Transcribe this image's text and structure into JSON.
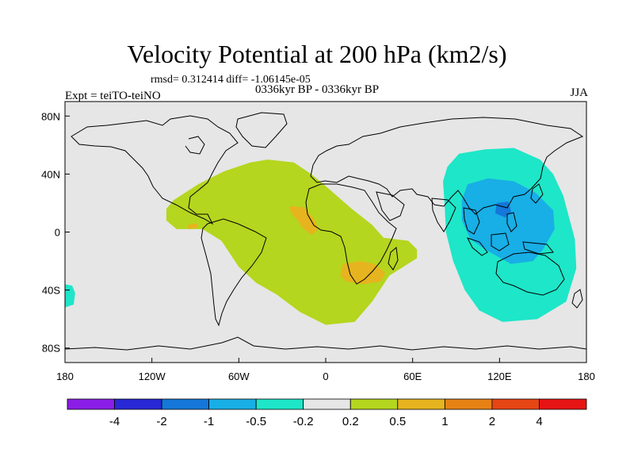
{
  "header": {
    "title": "Velocity Potential at 200 hPa (km2/s)",
    "stats": "rmsd= 0.312414 diff= -1.06145e-05",
    "subtitle": "0336kyr BP - 0336kyr BP",
    "experiment": "Expt = teiTO-teiNO",
    "season": "JJA"
  },
  "chart_data": {
    "type": "heatmap",
    "title": "Velocity Potential at 200 hPa (km2/s)",
    "projection": "cylindrical equidistant",
    "x_range": [
      -180,
      180
    ],
    "y_range": [
      -90,
      90
    ],
    "x_ticks": [
      {
        "value": -180,
        "label": "180"
      },
      {
        "value": -120,
        "label": "120W"
      },
      {
        "value": -60,
        "label": "60W"
      },
      {
        "value": 0,
        "label": "0"
      },
      {
        "value": 60,
        "label": "60E"
      },
      {
        "value": 120,
        "label": "120E"
      },
      {
        "value": 180,
        "label": "180"
      }
    ],
    "y_ticks": [
      {
        "value": 80,
        "label": "80N"
      },
      {
        "value": 40,
        "label": "40N"
      },
      {
        "value": 0,
        "label": "0"
      },
      {
        "value": -40,
        "label": "40S"
      },
      {
        "value": -80,
        "label": "80S"
      }
    ],
    "colorbar": {
      "boundaries": [
        "-4",
        "-2",
        "-1",
        "-0.5",
        "-0.2",
        "0.2",
        "0.5",
        "1",
        "2",
        "4"
      ],
      "colors": [
        "#8a1ee6",
        "#2828d6",
        "#1477d9",
        "#18aee6",
        "#1ee6c8",
        "#e6e6e6",
        "#b4d61e",
        "#e6b41e",
        "#e68214",
        "#e64614",
        "#e61414"
      ]
    },
    "regions": [
      {
        "name": "positive-atlantic-africa",
        "range": "0.2 to 0.5",
        "outline": [
          [
            -105,
            22
          ],
          [
            -88,
            33
          ],
          [
            -70,
            42
          ],
          [
            -52,
            48
          ],
          [
            -40,
            50
          ],
          [
            -22,
            48
          ],
          [
            -10,
            40
          ],
          [
            2,
            30
          ],
          [
            18,
            16
          ],
          [
            32,
            5
          ],
          [
            40,
            -4
          ],
          [
            57,
            -6
          ],
          [
            63,
            -12
          ],
          [
            63,
            -18
          ],
          [
            52,
            -25
          ],
          [
            44,
            -30
          ],
          [
            32,
            -48
          ],
          [
            20,
            -62
          ],
          [
            0,
            -64
          ],
          [
            -18,
            -55
          ],
          [
            -34,
            -43
          ],
          [
            -48,
            -35
          ],
          [
            -60,
            -24
          ],
          [
            -72,
            -6
          ],
          [
            -85,
            2
          ],
          [
            -103,
            2
          ],
          [
            -110,
            8
          ],
          [
            -110,
            16
          ]
        ]
      },
      {
        "name": "positive-gulf-of-guinea",
        "range": "0.5 to 1",
        "outline": [
          [
            -25,
            18
          ],
          [
            -15,
            17
          ],
          [
            -8,
            9
          ],
          [
            -5,
            2
          ],
          [
            -10,
            -2
          ],
          [
            -16,
            3
          ],
          [
            -20,
            9
          ],
          [
            -24,
            13
          ]
        ]
      },
      {
        "name": "positive-southern-africa",
        "range": "0.5 to 1",
        "outline": [
          [
            12,
            -22
          ],
          [
            24,
            -20
          ],
          [
            34,
            -22
          ],
          [
            41,
            -28
          ],
          [
            38,
            -34
          ],
          [
            26,
            -36
          ],
          [
            14,
            -34
          ],
          [
            10,
            -30
          ]
        ]
      },
      {
        "name": "positive-mexico-speck",
        "range": "0.5 to 1",
        "outline": [
          [
            -95,
            5
          ],
          [
            -89,
            6
          ],
          [
            -88,
            3
          ],
          [
            -95,
            2
          ]
        ]
      },
      {
        "name": "negative-asia-pacific",
        "range": "-0.5 to -0.2",
        "outline": [
          [
            84,
            45
          ],
          [
            92,
            54
          ],
          [
            110,
            57
          ],
          [
            130,
            58
          ],
          [
            148,
            50
          ],
          [
            157,
            40
          ],
          [
            164,
            25
          ],
          [
            168,
            10
          ],
          [
            172,
            -5
          ],
          [
            173,
            -25
          ],
          [
            166,
            -48
          ],
          [
            146,
            -60
          ],
          [
            122,
            -62
          ],
          [
            106,
            -54
          ],
          [
            96,
            -40
          ],
          [
            88,
            -20
          ],
          [
            83,
            0
          ],
          [
            82,
            20
          ],
          [
            81,
            35
          ]
        ]
      },
      {
        "name": "negative-maritime-continent",
        "range": "-1 to -0.5",
        "outline": [
          [
            98,
            33
          ],
          [
            112,
            37
          ],
          [
            130,
            35
          ],
          [
            145,
            27
          ],
          [
            157,
            15
          ],
          [
            158,
            2
          ],
          [
            150,
            -12
          ],
          [
            143,
            -20
          ],
          [
            128,
            -22
          ],
          [
            110,
            -12
          ],
          [
            100,
            -5
          ],
          [
            94,
            8
          ],
          [
            94,
            22
          ]
        ]
      },
      {
        "name": "negative-philippines-core",
        "range": "-2 to -1",
        "outline": [
          [
            118,
            20
          ],
          [
            126,
            21
          ],
          [
            128,
            14
          ],
          [
            124,
            10
          ],
          [
            117,
            13
          ]
        ]
      },
      {
        "name": "negative-pacific-edge",
        "range": "-0.5 to -0.2",
        "outline": [
          [
            -180,
            -36
          ],
          [
            -175,
            -37
          ],
          [
            -173,
            -42
          ],
          [
            -174,
            -50
          ],
          [
            -180,
            -52
          ]
        ]
      }
    ]
  }
}
